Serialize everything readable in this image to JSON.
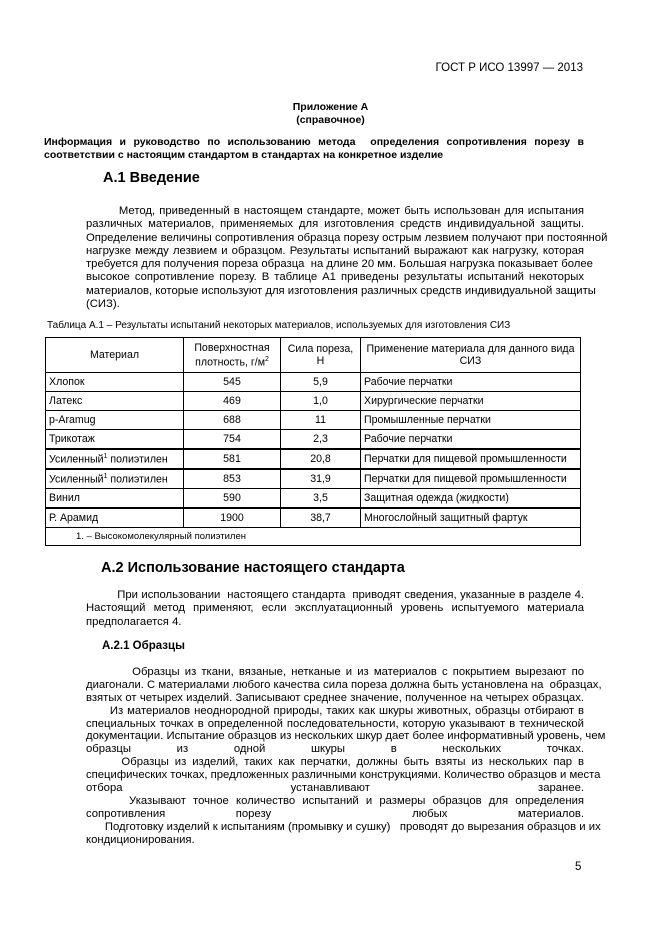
{
  "header": "ГОСТ Р ИСО 13997 — 2013",
  "appendix_title": "Приложение А",
  "appendix_kind": "(справочное)",
  "intro_lines": [
    "Информация и руководство по использованию метода  определения сопротивления порезу в",
    "соответствии с настоящим стандартом в стандартах на конкретное изделие"
  ],
  "s1_title": "А.1 Введение",
  "s1_lines": [
    "        Метод, приведенный в настоящем стандарте, может быть использован для испытания",
    "различных материалов, применяемых для изготовления средств индивидуальной защиты.",
    "Определение величины сопротивления образца порезу острым лезвием получают при постоянной",
    "нагрузке между лезвием и образцом. Результаты испытаний выражают как нагрузку, которая",
    "требуется для получения пореза образца  на длине 20 мм. Большая нагрузка показывает более",
    "высокое сопротивление порезу. В таблице А1 приведены результаты испытаний некоторых",
    "материалов, которые используют для изготовления различных средств индивидуальной защиты",
    "(СИЗ)."
  ],
  "table_caption": "Таблица А.1 – Результаты испытаний некоторых материалов, используемых для изготовления СИЗ",
  "table": {
    "headers": [
      "Материал",
      "Поверхностная плотность, г/м",
      "Сила пореза, Н",
      "Применение материала для данного вида СИЗ"
    ],
    "header_sup": "2",
    "rows": [
      {
        "material": "Хлопок",
        "sup": "",
        "density": "545",
        "force": "5,9",
        "use": "Рабочие перчатки"
      },
      {
        "material": "Латекс",
        "sup": "",
        "density": "469",
        "force": "1,0",
        "use": "Хирургические перчатки"
      },
      {
        "material": "p-Aramug",
        "sup": "",
        "density": "688",
        "force": "11",
        "use": "Промышленные перчатки"
      },
      {
        "material": "Трикотаж",
        "sup": "",
        "density": "754",
        "force": "2,3",
        "use": "Рабочие перчатки"
      },
      {
        "material": "Усиленный",
        "sup": "1",
        "material2": " полиэтилен",
        "density": "581",
        "force": "20,8",
        "use": "Перчатки для пищевой промышленности"
      },
      {
        "material": "Усиленный",
        "sup": "1",
        "material2": " полиэтилен",
        "density": "853",
        "force": "31,9",
        "use": "Перчатки для пищевой промышленности"
      },
      {
        "material": "Винил",
        "sup": "",
        "density": "590",
        "force": "3,5",
        "use": "Защитная одежда (жидкости)"
      },
      {
        "material": "Р. Арамид",
        "sup": "",
        "density": "1900",
        "force": "38,7",
        "use": "Многослойный защитный фартук"
      }
    ],
    "footnote": "1. – Высокомолекулярный полиэтилен"
  },
  "s2_title": "А.2 Использование настоящего стандарта",
  "s2_lines": [
    "         При использовании  настоящего стандарта  приводят сведения, указанные в разделе 4.",
    "Настоящий метод применяют, если эксплуатационный уровень испытуемого материала",
    "предполагается 4."
  ],
  "s21_title": "А.2.1 Образцы",
  "s21_lines": [
    "         Образцы из ткани, вязаные, нетканые и из материалов с покрытием вырезают по",
    "диагонали. С материалами любого качества сила пореза должна быть установлена на  образцах,",
    "взятых от четырех изделий. Записывают среднее значение, полученное на четырех образцах.",
    "      Из материалов неоднородной природы, таких как шкуры животных, образцы отбирают в",
    "специальных точках в определенной последовательности, которую указывают в технической",
    "документации. Испытание образцов из нескольких шкур дает более информативный уровень, чем",
    "образцы из одной шкуры в нескольких точках.",
    "      Образцы из изделий, таких как перчатки, должны быть взяты из нескольких пар в",
    "специфических точках, предложенных различными конструкциями. Количество образцов и места",
    "отбора устанавливают заранее.",
    "      Указывают точное количество испытаний и размеры образцов для определения",
    "сопротивления порезу  любых материалов.",
    "      Подготовку изделий к испытаниям (промывку и сушку)   проводят до вырезания образцов и их",
    "кондиционирования."
  ],
  "page_number": "5"
}
